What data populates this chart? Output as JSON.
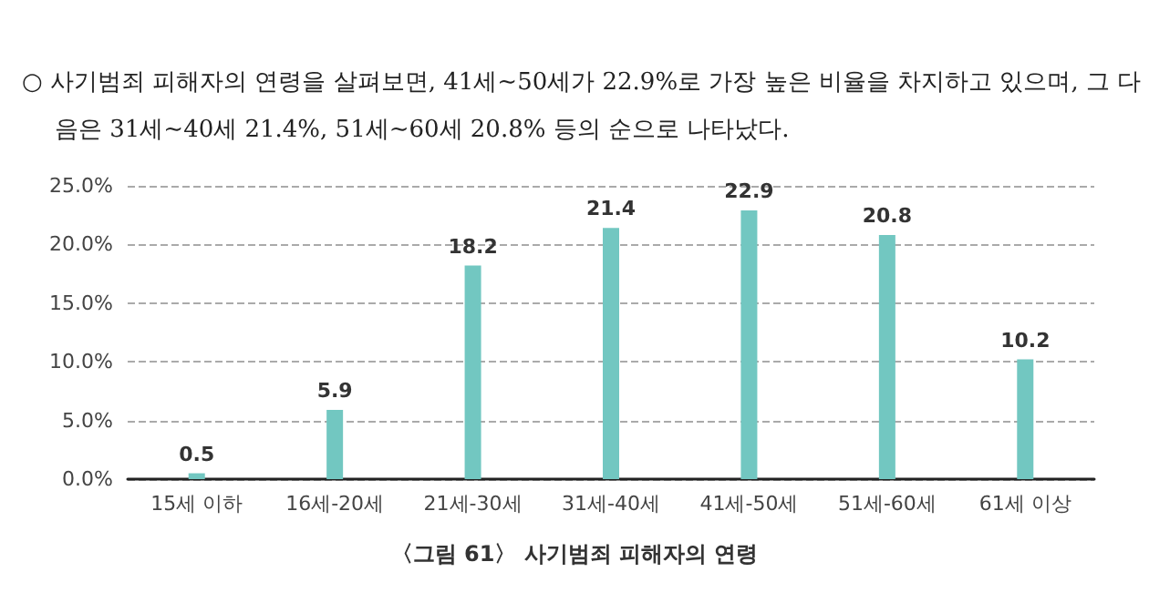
{
  "chart_data": {
    "type": "bar",
    "title": "〈그림 61〉 사기범죄 피해자의 연령",
    "annotations": [
      "○ 사기범죄 피해자의 연령을 살펴보면, 41세~50세가 22.9%로 가장 높은 비율을 차지하고 있으며, 그 다음은 31세~40세 21.4%, 51세~60세 20.8% 등의 순으로 나타났다."
    ],
    "categories": [
      "15세 이하",
      "16세-20세",
      "21세-30세",
      "31세-40세",
      "41세-50세",
      "51세-60세",
      "61세 이상"
    ],
    "values": [
      0.5,
      5.9,
      18.2,
      21.4,
      22.9,
      20.8,
      10.2
    ],
    "color": "#72c7c1",
    "ylim": [
      0,
      25
    ],
    "yticks": [
      {
        "value": 0,
        "label": "0.0%"
      },
      {
        "value": 5,
        "label": "5.0%"
      },
      {
        "value": 10,
        "label": "10.0%"
      },
      {
        "value": 15,
        "label": "15.0%"
      },
      {
        "value": 20,
        "label": "20.0%"
      },
      {
        "value": 25,
        "label": "25.0%"
      }
    ],
    "grid": "y",
    "data_labels": true
  }
}
